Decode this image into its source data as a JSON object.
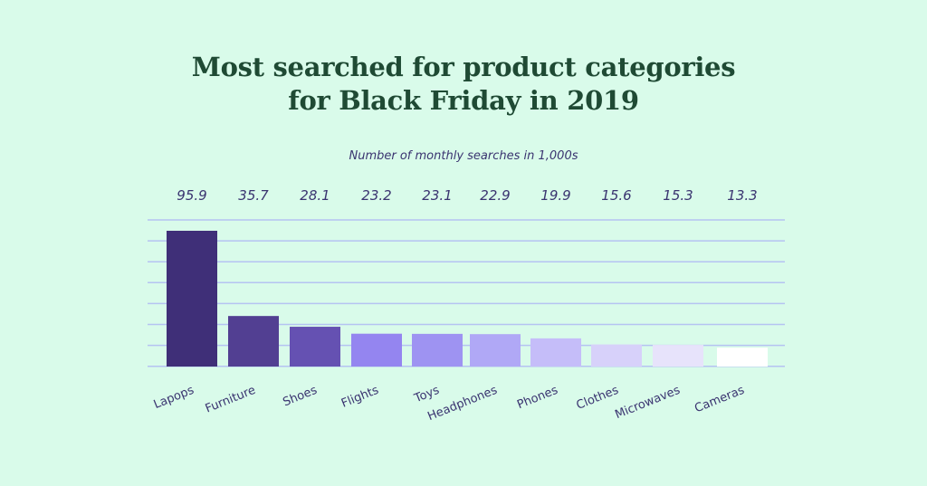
{
  "title_line1": "Most searched for product categories",
  "title_line2": "for Black Friday in 2019",
  "subtitle": "Number of monthly searches in 1,000s",
  "colors": {
    "background": "#d9fbea",
    "title": "#1f4a34",
    "text": "#3a3470",
    "grid": "#b5c3f2",
    "bars": [
      "#3f2f78",
      "#523f92",
      "#6551b2",
      "#9485f0",
      "#9e93f2",
      "#b0a8f6",
      "#c5bdf9",
      "#d7d1fa",
      "#e7e3fb",
      "#ffffff"
    ]
  },
  "chart_data": {
    "type": "bar",
    "title": "Most searched for product categories for Black Friday in 2019",
    "subtitle": "Number of monthly searches in 1,000s",
    "categories": [
      "Lapops",
      "Furniture",
      "Shoes",
      "Flights",
      "Toys",
      "Headphones",
      "Phones",
      "Clothes",
      "Microwaves",
      "Cameras"
    ],
    "values": [
      95.9,
      35.7,
      28.1,
      23.2,
      23.1,
      22.9,
      19.9,
      15.6,
      15.3,
      13.3
    ],
    "value_labels": [
      "95.9",
      "35.7",
      "28.1",
      "23.2",
      "23.1",
      "22.9",
      "19.9",
      "15.6",
      "15.3",
      "13.3"
    ],
    "xlabel": "",
    "ylabel": "",
    "grid": true,
    "legend": "none"
  }
}
